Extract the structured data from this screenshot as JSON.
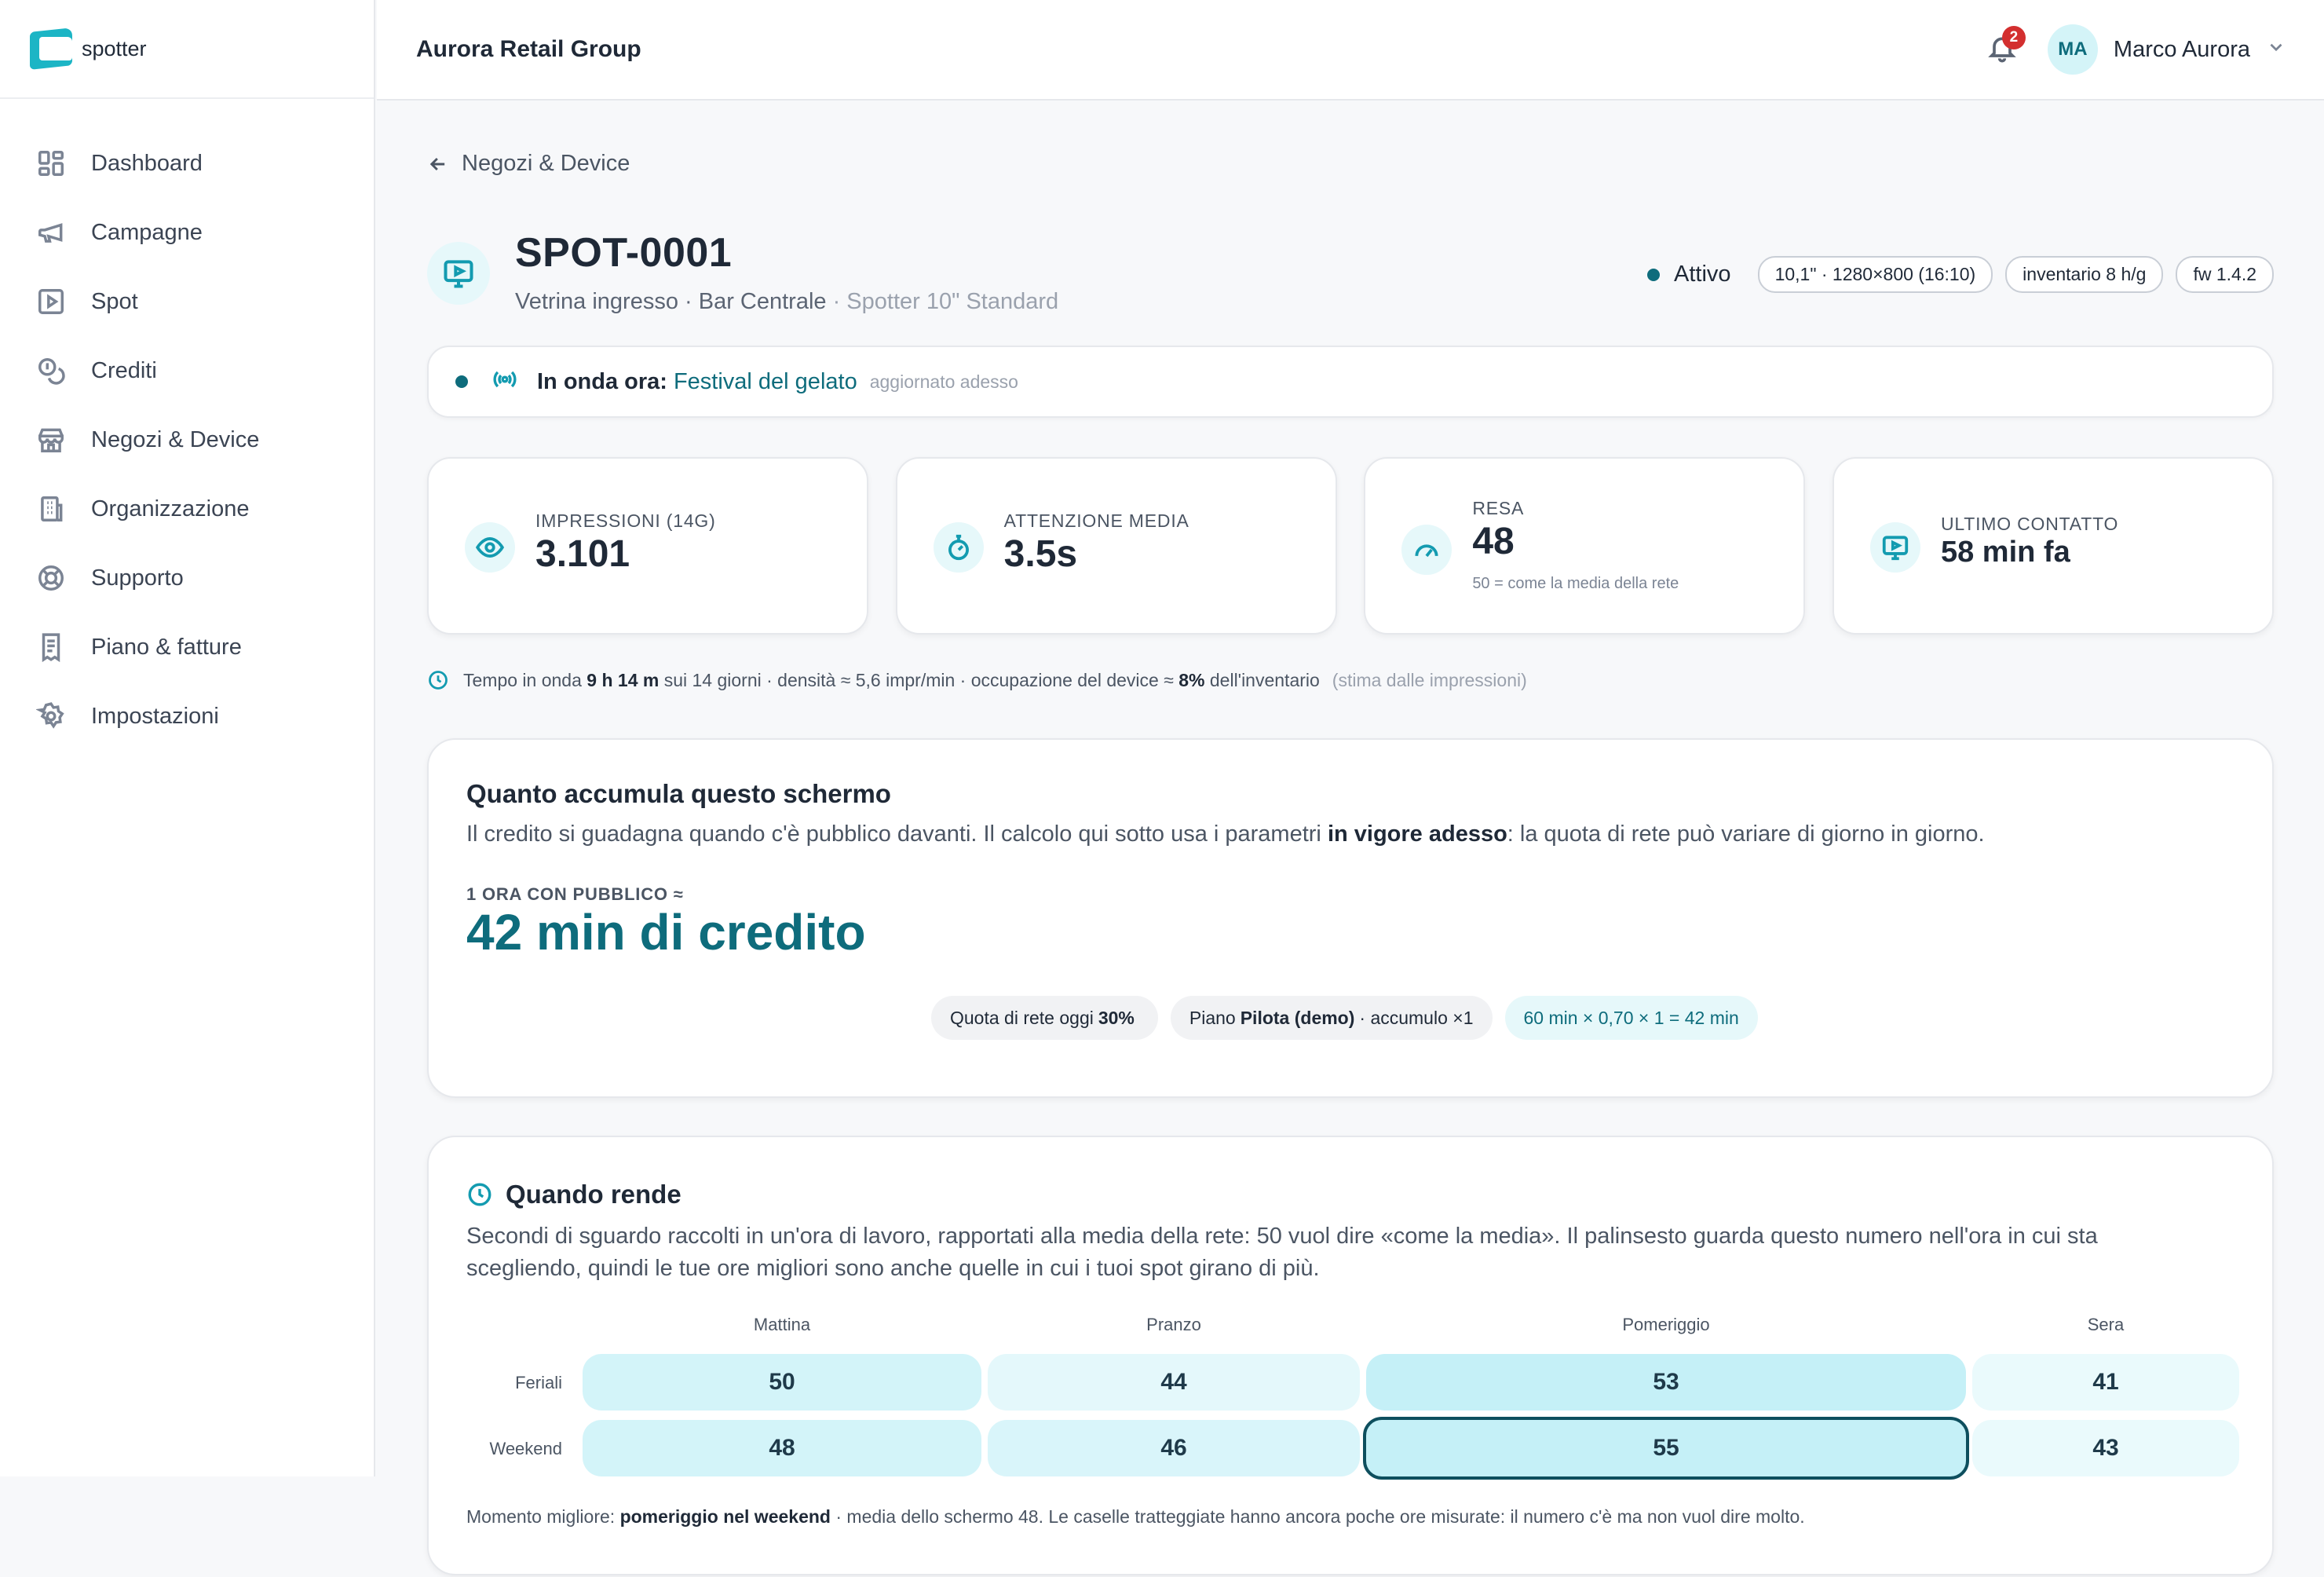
{
  "brand": {
    "name": "spotter"
  },
  "sidebar": {
    "items": [
      {
        "label": "Dashboard",
        "icon": "dashboard-icon"
      },
      {
        "label": "Campagne",
        "icon": "megaphone-icon"
      },
      {
        "label": "Spot",
        "icon": "play-square-icon"
      },
      {
        "label": "Crediti",
        "icon": "coins-icon"
      },
      {
        "label": "Negozi & Device",
        "icon": "store-icon"
      },
      {
        "label": "Organizzazione",
        "icon": "building-icon"
      },
      {
        "label": "Supporto",
        "icon": "lifebuoy-icon"
      },
      {
        "label": "Piano & fatture",
        "icon": "receipt-icon"
      },
      {
        "label": "Impostazioni",
        "icon": "gear-icon"
      }
    ]
  },
  "header": {
    "org_name": "Aurora Retail Group",
    "notifications_count": "2",
    "user_initials": "MA",
    "user_name": "Marco Aurora"
  },
  "back_link": "Negozi & Device",
  "device": {
    "title": "SPOT-0001",
    "subtitle": "Vetrina ingresso · Bar Centrale",
    "model": " · Spotter 10\" Standard",
    "status": "Attivo",
    "tags": [
      "10,1\" · 1280×800 (16:10)",
      "inventario 8 h/g",
      "fw 1.4.2"
    ]
  },
  "on_air": {
    "label": "In onda ora:",
    "campaign": "Festival del gelato",
    "updated": "aggiornato adesso"
  },
  "stats": [
    {
      "label": "IMPRESSIONI (14G)",
      "value": "3.101",
      "note": "",
      "icon": "eye-icon"
    },
    {
      "label": "ATTENZIONE MEDIA",
      "value": "3.5s",
      "note": "",
      "icon": "stopwatch-icon"
    },
    {
      "label": "RESA",
      "value": "48",
      "note": "50 = come la media della rete",
      "icon": "gauge-icon"
    },
    {
      "label": "ULTIMO CONTATTO",
      "value": "58 min fa",
      "note": "",
      "icon": "monitor-icon"
    }
  ],
  "airtime": {
    "prefix": "Tempo in onda",
    "duration": "9 h 14 m",
    "mid": "sui 14 giorni · densità ≈ 5,6 impr/min · occupazione del device ≈",
    "occupancy": "8%",
    "suffix": "dell'inventario",
    "note": "(stima dalle impressioni)"
  },
  "credit_card": {
    "title": "Quanto accumula questo schermo",
    "desc_a": "Il credito si guadagna quando c'è pubblico davanti. Il calcolo qui sotto usa i parametri ",
    "desc_bold": "in vigore adesso",
    "desc_b": ": la quota di rete può variare di giorno in giorno.",
    "kicker": "1 ORA CON PUBBLICO ≈",
    "big_value": "42 min di credito",
    "pill_quota_a": "Quota di rete oggi",
    "pill_quota_b": "30%",
    "pill_plan_a": "Piano",
    "pill_plan_b": "Pilota (demo)",
    "pill_plan_c": "· accumulo ×1",
    "pill_formula": "60 min × 0,70 × 1 = 42 min"
  },
  "yield_card": {
    "title": "Quando rende",
    "desc_line1": "Secondi di sguardo raccolti in un'ora di lavoro, rapportati alla media della rete: 50 vuol dire «come la media». Il palinsesto guarda questo numero nell'ora in cui sta",
    "desc_line2": "scegliendo, quindi le tue ore migliori sono anche quelle in cui i tuoi spot girano di più.",
    "columns": [
      "Mattina",
      "Pranzo",
      "Pomeriggio",
      "Sera"
    ],
    "rows": [
      {
        "label": "Feriali",
        "values": [
          50,
          44,
          53,
          41
        ]
      },
      {
        "label": "Weekend",
        "values": [
          48,
          46,
          55,
          43
        ]
      }
    ],
    "best": {
      "row": 1,
      "col": 2
    },
    "note_a": "Momento migliore: ",
    "note_bold": "pomeriggio nel weekend",
    "note_b": " · media dello schermo 48. Le caselle tratteggiate hanno ancora poche ore misurate: il numero c'è ma non vuol dire molto."
  },
  "colors": {
    "accent": "#0e6c7c",
    "accent_light": "#e6f8fa",
    "badge": "#d32f2f"
  }
}
